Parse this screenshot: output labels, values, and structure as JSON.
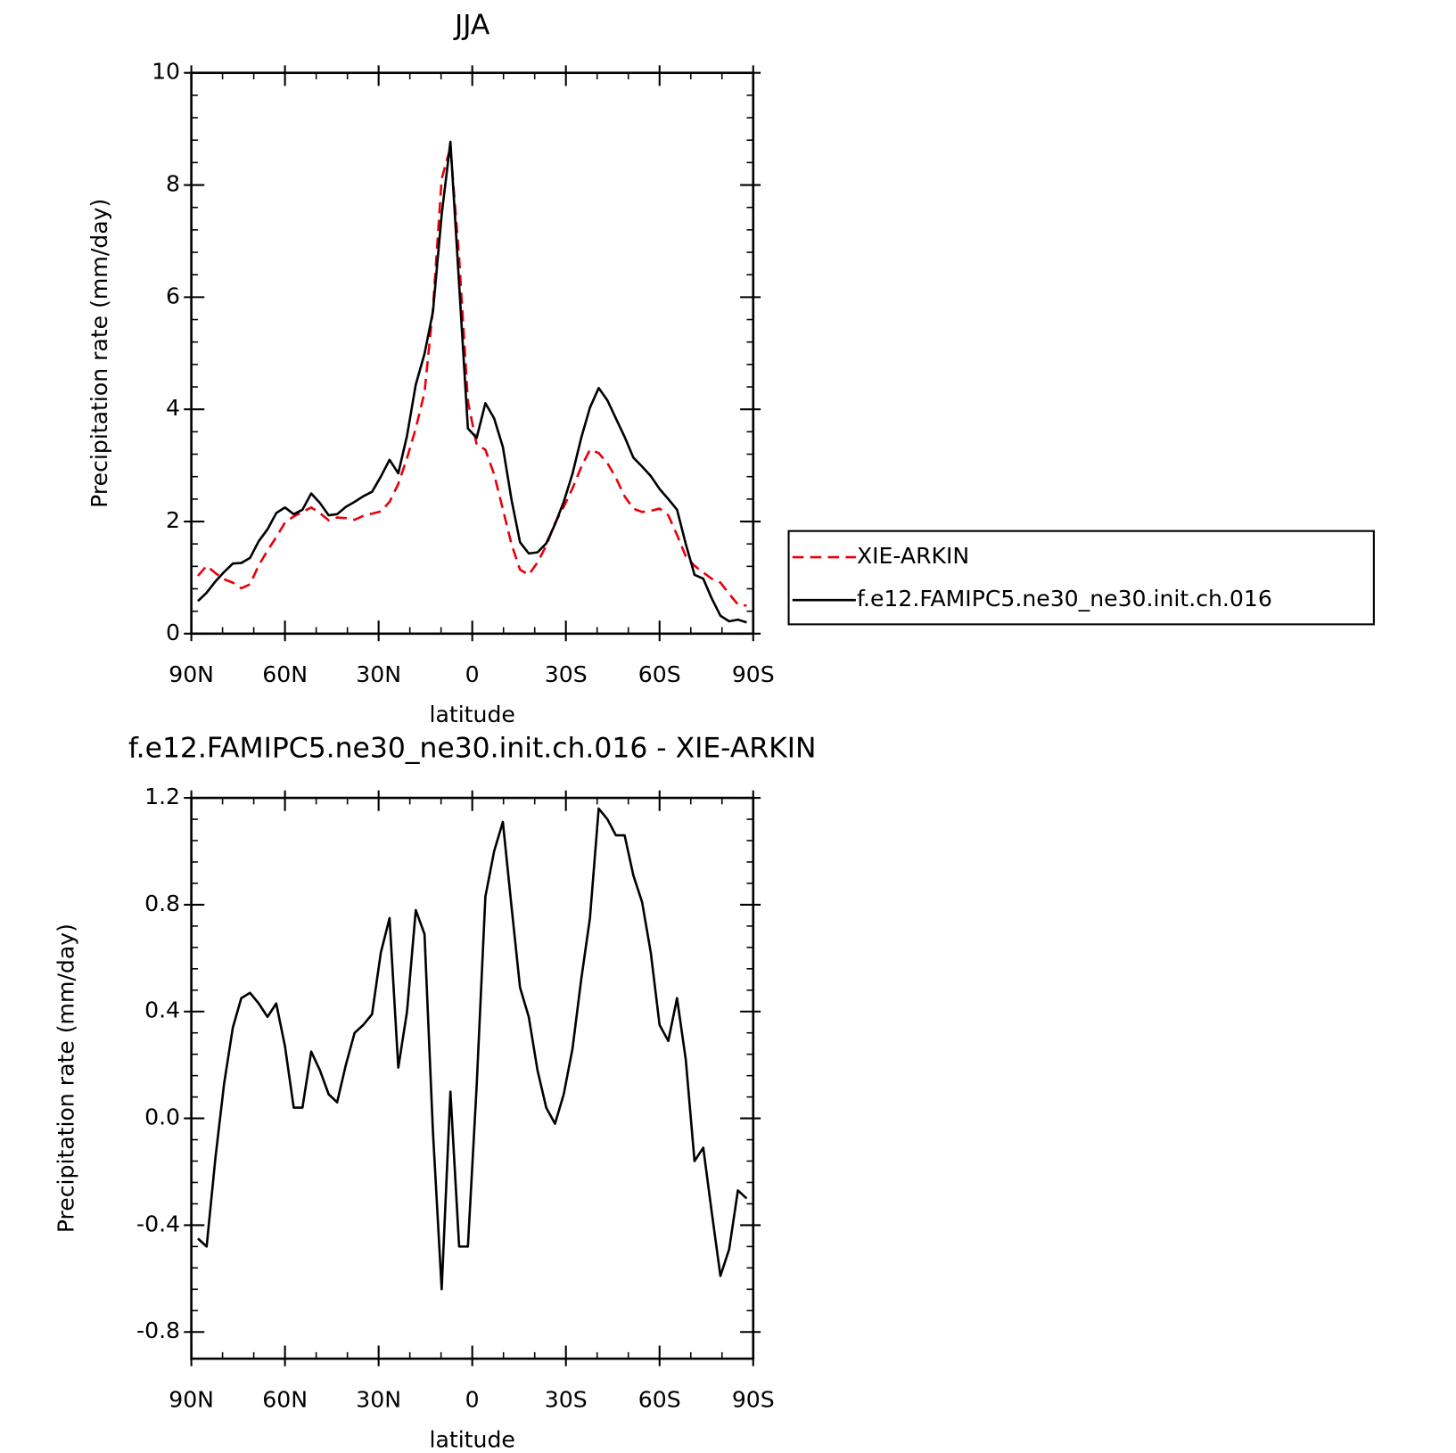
{
  "chart_data": [
    {
      "type": "line",
      "title": "JJA",
      "xlabel": "latitude",
      "ylabel": "Precipitation rate (mm/day)",
      "x": [
        87.9,
        85.1,
        82.3,
        79.5,
        76.7,
        74.0,
        71.2,
        68.4,
        65.6,
        62.8,
        60.0,
        57.2,
        54.4,
        51.6,
        48.8,
        46.0,
        43.3,
        40.5,
        37.7,
        34.9,
        32.1,
        29.3,
        26.5,
        23.7,
        20.9,
        18.1,
        15.3,
        12.6,
        9.8,
        7.0,
        4.2,
        1.4,
        -1.4,
        -4.2,
        -7.0,
        -9.8,
        -12.6,
        -15.3,
        -18.1,
        -20.9,
        -23.7,
        -26.5,
        -29.3,
        -32.1,
        -34.9,
        -37.7,
        -40.5,
        -43.3,
        -46.0,
        -48.8,
        -51.6,
        -54.4,
        -57.2,
        -60.0,
        -62.8,
        -65.6,
        -68.4,
        -71.2,
        -74.0,
        -76.7,
        -79.5,
        -82.3,
        -85.1,
        -87.9
      ],
      "xlim": [
        90,
        -90
      ],
      "xticks": [
        {
          "value": 90,
          "label": "90N"
        },
        {
          "value": 60,
          "label": "60N"
        },
        {
          "value": 30,
          "label": "30N"
        },
        0,
        {
          "value": -30,
          "label": "30S"
        },
        {
          "value": -60,
          "label": "60S"
        },
        {
          "value": -90,
          "label": "90S"
        }
      ],
      "ylim": [
        0,
        10
      ],
      "yticks": [
        0,
        2,
        4,
        6,
        8,
        10
      ],
      "legend": "right",
      "series": [
        {
          "name": "XIE-ARKIN",
          "color": "#e8000b",
          "dash": true,
          "values": [
            1.03,
            1.21,
            1.08,
            0.97,
            0.91,
            0.81,
            0.88,
            1.22,
            1.48,
            1.72,
            1.98,
            2.09,
            2.17,
            2.25,
            2.15,
            2.02,
            2.07,
            2.06,
            2.03,
            2.1,
            2.14,
            2.18,
            2.35,
            2.67,
            3.13,
            3.66,
            4.3,
            5.79,
            8.11,
            8.67,
            6.7,
            4.14,
            3.37,
            3.28,
            2.84,
            2.22,
            1.59,
            1.14,
            1.05,
            1.27,
            1.57,
            1.97,
            2.26,
            2.59,
            2.97,
            3.28,
            3.22,
            3.04,
            2.78,
            2.45,
            2.23,
            2.17,
            2.19,
            2.23,
            2.11,
            1.76,
            1.38,
            1.21,
            1.09,
            0.98,
            0.91,
            0.71,
            0.52,
            0.5
          ]
        },
        {
          "name": "f.e12.FAMIPC5.ne30_ne30.init.ch.016",
          "color": "#000000",
          "dash": false,
          "values": [
            0.58,
            0.73,
            0.93,
            1.1,
            1.25,
            1.26,
            1.35,
            1.65,
            1.86,
            2.15,
            2.25,
            2.13,
            2.21,
            2.5,
            2.33,
            2.11,
            2.13,
            2.26,
            2.35,
            2.45,
            2.53,
            2.8,
            3.1,
            2.86,
            3.53,
            4.44,
            4.99,
            5.74,
            7.47,
            8.77,
            6.22,
            3.66,
            3.49,
            4.11,
            3.84,
            3.33,
            2.38,
            1.63,
            1.43,
            1.45,
            1.61,
            1.95,
            2.35,
            2.85,
            3.49,
            4.03,
            4.38,
            4.16,
            3.84,
            3.51,
            3.14,
            2.98,
            2.81,
            2.58,
            2.4,
            2.21,
            1.6,
            1.05,
            0.98,
            0.63,
            0.32,
            0.22,
            0.25,
            0.2
          ]
        }
      ]
    },
    {
      "type": "line",
      "title": "f.e12.FAMIPC5.ne30_ne30.init.ch.016 - XIE-ARKIN",
      "xlabel": "latitude",
      "ylabel": "Precipitation rate (mm/day)",
      "x": [
        87.9,
        85.1,
        82.3,
        79.5,
        76.7,
        74.0,
        71.2,
        68.4,
        65.6,
        62.8,
        60.0,
        57.2,
        54.4,
        51.6,
        48.8,
        46.0,
        43.3,
        40.5,
        37.7,
        34.9,
        32.1,
        29.3,
        26.5,
        23.7,
        20.9,
        18.1,
        15.3,
        12.6,
        9.8,
        7.0,
        4.2,
        1.4,
        -1.4,
        -4.2,
        -7.0,
        -9.8,
        -12.6,
        -15.3,
        -18.1,
        -20.9,
        -23.7,
        -26.5,
        -29.3,
        -32.1,
        -34.9,
        -37.7,
        -40.5,
        -43.3,
        -46.0,
        -48.8,
        -51.6,
        -54.4,
        -57.2,
        -60.0,
        -62.8,
        -65.6,
        -68.4,
        -71.2,
        -74.0,
        -76.7,
        -79.5,
        -82.3,
        -85.1,
        -87.9
      ],
      "xlim": [
        90,
        -90
      ],
      "xticks": [
        {
          "value": 90,
          "label": "90N"
        },
        {
          "value": 60,
          "label": "60N"
        },
        {
          "value": 30,
          "label": "30N"
        },
        0,
        {
          "value": -30,
          "label": "30S"
        },
        {
          "value": -60,
          "label": "60S"
        },
        {
          "value": -90,
          "label": "90S"
        }
      ],
      "ylim": [
        -0.9,
        1.2
      ],
      "yticks": [
        -0.8,
        -0.4,
        {
          "value": 0,
          "label": "0.0"
        },
        0.4,
        0.8,
        1.2
      ],
      "series": [
        {
          "color": "#000000",
          "dash": false,
          "values": [
            -0.45,
            -0.48,
            -0.15,
            0.13,
            0.34,
            0.45,
            0.47,
            0.43,
            0.38,
            0.43,
            0.27,
            0.04,
            0.04,
            0.25,
            0.18,
            0.09,
            0.06,
            0.2,
            0.32,
            0.35,
            0.39,
            0.62,
            0.75,
            0.19,
            0.4,
            0.78,
            0.69,
            -0.05,
            -0.64,
            0.1,
            -0.48,
            -0.48,
            0.12,
            0.83,
            1.0,
            1.11,
            0.79,
            0.49,
            0.38,
            0.18,
            0.04,
            -0.02,
            0.09,
            0.26,
            0.52,
            0.75,
            1.16,
            1.12,
            1.06,
            1.06,
            0.91,
            0.81,
            0.62,
            0.35,
            0.29,
            0.45,
            0.22,
            -0.16,
            -0.11,
            -0.35,
            -0.59,
            -0.49,
            -0.27,
            -0.3
          ]
        }
      ]
    }
  ]
}
